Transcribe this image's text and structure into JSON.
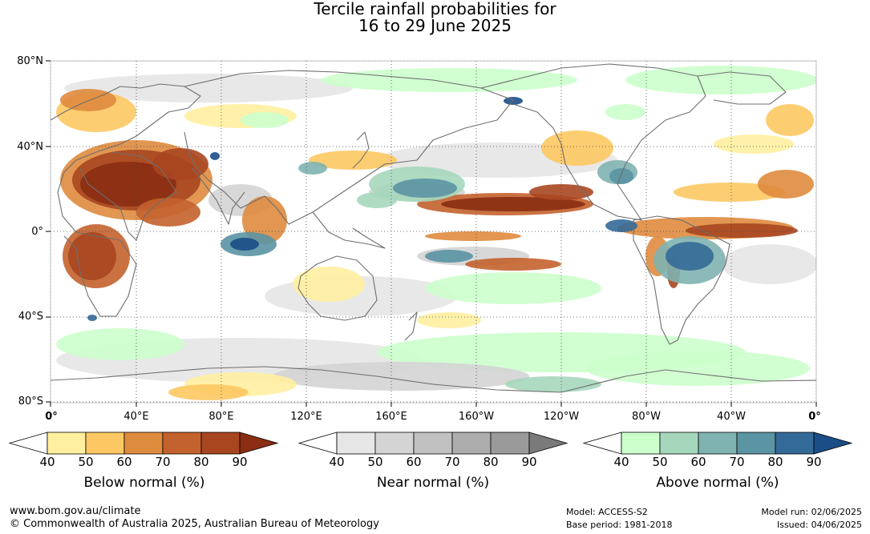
{
  "title": {
    "line1": "Tercile rainfall probabilities for",
    "line2": "16 to 29 June 2025"
  },
  "map": {
    "lat_labels": [
      "80°N",
      "40°N",
      "0°",
      "40°S",
      "80°S"
    ],
    "lon_labels": [
      "0°",
      "40°E",
      "80°E",
      "120°E",
      "160°E",
      "160°W",
      "120°W",
      "80°W",
      "40°W",
      "0°"
    ],
    "colors": {
      "below": [
        "#fff0a0",
        "#fdc863",
        "#df8b3e",
        "#c4622d",
        "#a84620",
        "#8a2d12"
      ],
      "near": [
        "#e6e6e6",
        "#d4d4d4",
        "#c1c1c1",
        "#adadad",
        "#9a9a9a",
        "#7a7a7a"
      ],
      "above": [
        "#ccffcc",
        "#a6d7bc",
        "#7fb3b0",
        "#5b94a3",
        "#346a98",
        "#1b4e87"
      ],
      "coastline": "#6e6e6e"
    }
  },
  "colorbars": [
    {
      "name": "below",
      "ticks": [
        "40",
        "50",
        "60",
        "70",
        "80",
        "90"
      ],
      "title": "Below normal (%)"
    },
    {
      "name": "near",
      "ticks": [
        "40",
        "50",
        "60",
        "70",
        "80",
        "90"
      ],
      "title": "Near normal (%)"
    },
    {
      "name": "above",
      "ticks": [
        "40",
        "50",
        "60",
        "70",
        "80",
        "90"
      ],
      "title": "Above normal (%)"
    }
  ],
  "footer": {
    "url": "www.bom.gov.au/climate",
    "copyright": "© Commonwealth of Australia 2025, Australian Bureau of Meteorology",
    "model": "Model: ACCESS-S2",
    "base_period": "Base period: 1981-2018",
    "model_run": "Model run: 02/06/2025",
    "issued": "Issued: 04/06/2025"
  }
}
